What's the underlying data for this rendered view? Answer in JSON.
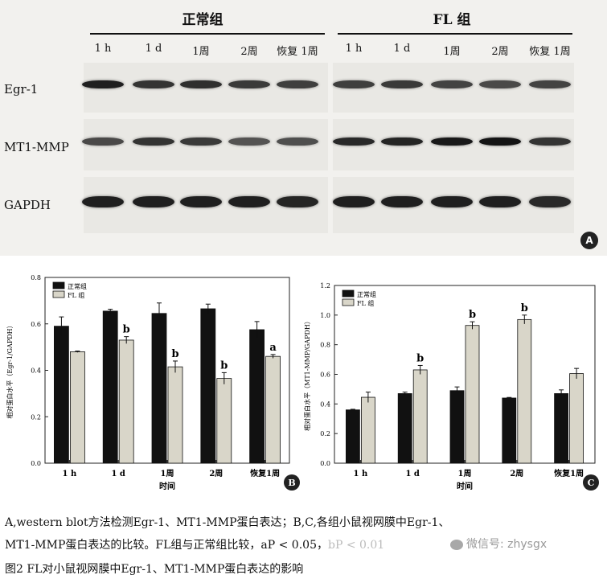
{
  "blot": {
    "groups": [
      {
        "name": "正常组",
        "lanes": [
          "1 h",
          "1 d",
          "1周",
          "2周",
          "恢复 1周"
        ]
      },
      {
        "name": "FL 组",
        "lanes": [
          "1 h",
          "1 d",
          "1周",
          "2周",
          "恢复 1周"
        ]
      }
    ],
    "rows": [
      "Egr-1",
      "MT1-MMP",
      "GAPDH"
    ],
    "panel_letter": "A"
  },
  "chart_data": [
    {
      "type": "bar",
      "panel_letter": "B",
      "categories": [
        "1 h",
        "1 d",
        "1周",
        "2周",
        "恢复1周"
      ],
      "series": [
        {
          "name": "正常组",
          "color": "#111111",
          "values": [
            0.59,
            0.655,
            0.645,
            0.665,
            0.575
          ],
          "errors": [
            0.04,
            0.008,
            0.045,
            0.02,
            0.035
          ]
        },
        {
          "name": "FL 组",
          "color": "#d9d6c9",
          "values": [
            0.48,
            0.53,
            0.415,
            0.365,
            0.46
          ],
          "errors": [
            0.003,
            0.015,
            0.025,
            0.025,
            0.008
          ]
        }
      ],
      "annotations": [
        "",
        "b",
        "b",
        "b",
        "a"
      ],
      "ylabel": "相对蛋白水平（Egr-1/GAPDH）",
      "xlabel": "时间",
      "ylim": [
        0,
        0.8
      ],
      "yticks": [
        "0.0",
        "0.2",
        "0.4",
        "0.6",
        "0.8"
      ],
      "legend": "top-left"
    },
    {
      "type": "bar",
      "panel_letter": "C",
      "categories": [
        "1 h",
        "1 d",
        "1周",
        "2周",
        "恢复1周"
      ],
      "series": [
        {
          "name": "正常组",
          "color": "#111111",
          "values": [
            0.36,
            0.47,
            0.49,
            0.44,
            0.47
          ],
          "errors": [
            0.004,
            0.01,
            0.025,
            0.004,
            0.025
          ]
        },
        {
          "name": "FL 组",
          "color": "#d9d6c9",
          "values": [
            0.445,
            0.63,
            0.93,
            0.97,
            0.605
          ],
          "errors": [
            0.035,
            0.03,
            0.025,
            0.03,
            0.035
          ]
        }
      ],
      "annotations": [
        "",
        "b",
        "b",
        "b",
        ""
      ],
      "ylabel": "相对蛋白水平（MT1-MMP/GAPDH）",
      "xlabel": "时间",
      "ylim": [
        0,
        1.2
      ],
      "yticks": [
        "0.0",
        "0.2",
        "0.4",
        "0.6",
        "0.8",
        "1.0",
        "1.2"
      ],
      "legend": "top-left"
    }
  ],
  "caption": {
    "line1": "A,western blot方法检测Egr-1、MT1-MMP蛋白表达；B,C,各组小鼠视网膜中Egr-1、",
    "line2": "MT1-MMP蛋白表达的比较。FL组与正常组比较，aP < 0.05，",
    "line2_tail": "bP < 0.01",
    "watermark": "微信号: zhysgx",
    "title": "图2  FL对小鼠视网膜中Egr-1、MT1-MMP蛋白表达的影响"
  }
}
